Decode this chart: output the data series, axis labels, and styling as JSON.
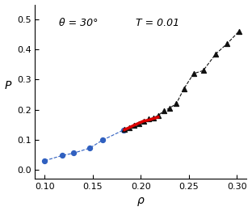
{
  "title": "",
  "xlabel": "ρ",
  "ylabel": "P",
  "annotation1": "θ = 30°",
  "annotation2": "T = 0.01",
  "xlim": [
    0.09,
    0.31
  ],
  "ylim": [
    -0.03,
    0.55
  ],
  "xticks": [
    0.1,
    0.15,
    0.2,
    0.25,
    0.3
  ],
  "yticks": [
    0.0,
    0.1,
    0.2,
    0.3,
    0.4,
    0.5
  ],
  "blue_x": [
    0.1,
    0.118,
    0.13,
    0.147,
    0.16,
    0.182
  ],
  "blue_y": [
    0.03,
    0.047,
    0.055,
    0.072,
    0.098,
    0.132
  ],
  "red_x": [
    0.183,
    0.188,
    0.193,
    0.198,
    0.203,
    0.208,
    0.213,
    0.218
  ],
  "red_y": [
    0.133,
    0.14,
    0.148,
    0.155,
    0.162,
    0.165,
    0.17,
    0.175
  ],
  "black_x": [
    0.183,
    0.188,
    0.193,
    0.198,
    0.203,
    0.208,
    0.213,
    0.218,
    0.224,
    0.23,
    0.237,
    0.245,
    0.255,
    0.265,
    0.278,
    0.29,
    0.302
  ],
  "black_y": [
    0.133,
    0.14,
    0.148,
    0.153,
    0.16,
    0.168,
    0.173,
    0.18,
    0.196,
    0.205,
    0.22,
    0.27,
    0.32,
    0.33,
    0.385,
    0.42,
    0.46
  ],
  "blue_color": "#3060c0",
  "red_color": "#dd0000",
  "black_color": "#111111",
  "line_color_blue": "#4070d0",
  "line_color_black": "#333333",
  "bg_color": "#ffffff"
}
